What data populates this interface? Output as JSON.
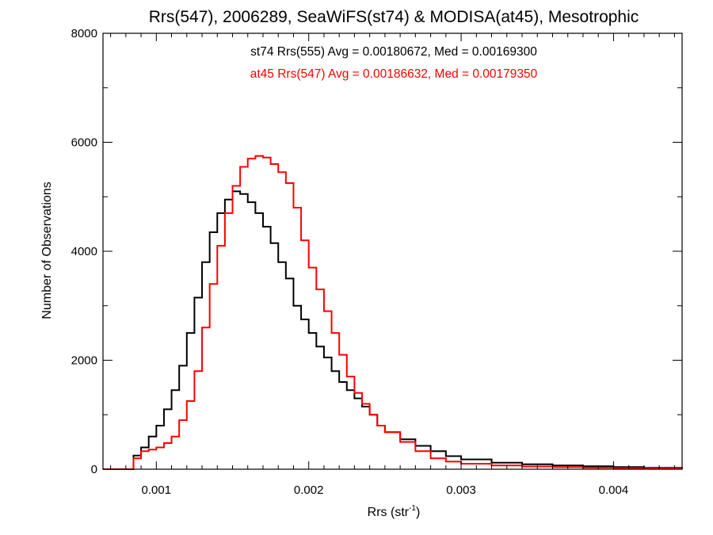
{
  "chart_data": {
    "type": "line",
    "title": "Rrs(547), 2006289, SeaWiFS(st74) & MODISA(at45), Mesotrophic",
    "xlabel_main": "Rrs (str",
    "xlabel_sup": "-1",
    "xlabel_close": ")",
    "ylabel": "Number of Observations",
    "xlim": [
      0.00065,
      0.00445
    ],
    "ylim": [
      0,
      8000
    ],
    "xticks": [
      0.001,
      0.002,
      0.003,
      0.004
    ],
    "xtick_labels": [
      "0.001",
      "0.002",
      "0.003",
      "0.004"
    ],
    "yticks": [
      0,
      2000,
      4000,
      6000,
      8000
    ],
    "ytick_labels": [
      "0",
      "2000",
      "4000",
      "6000",
      "8000"
    ],
    "grid": false,
    "legend_placement": "top-center",
    "series": [
      {
        "name": "st74 Rrs(555) Avg = 0.00180672, Med = 0.00169300",
        "color": "#000000",
        "x": [
          0.00065,
          0.00075,
          0.0008,
          0.00085,
          0.0009,
          0.00095,
          0.001,
          0.00105,
          0.0011,
          0.00115,
          0.0012,
          0.00125,
          0.0013,
          0.00135,
          0.0014,
          0.00145,
          0.0015,
          0.00155,
          0.0016,
          0.00165,
          0.0017,
          0.00175,
          0.0018,
          0.00185,
          0.0019,
          0.00195,
          0.002,
          0.00205,
          0.0021,
          0.00215,
          0.0022,
          0.00225,
          0.0023,
          0.00235,
          0.0024,
          0.00245,
          0.0025,
          0.0026,
          0.0027,
          0.0028,
          0.0029,
          0.003,
          0.0032,
          0.0034,
          0.0036,
          0.0038,
          0.004,
          0.0042,
          0.00445
        ],
        "y": [
          0,
          0,
          0,
          250,
          400,
          600,
          800,
          1100,
          1450,
          1900,
          2500,
          3150,
          3800,
          4350,
          4700,
          4950,
          5100,
          5050,
          4900,
          4700,
          4450,
          4150,
          3800,
          3500,
          3000,
          2750,
          2500,
          2250,
          2050,
          1800,
          1600,
          1450,
          1300,
          1150,
          1000,
          800,
          680,
          550,
          430,
          330,
          240,
          180,
          120,
          90,
          70,
          55,
          40,
          25,
          15
        ]
      },
      {
        "name": "at45 Rrs(547) Avg = 0.00186632, Med = 0.00179350",
        "color": "#ff0000",
        "x": [
          0.00065,
          0.00075,
          0.0008,
          0.00085,
          0.0009,
          0.00095,
          0.001,
          0.00105,
          0.0011,
          0.00115,
          0.0012,
          0.00125,
          0.0013,
          0.00135,
          0.0014,
          0.00145,
          0.0015,
          0.00155,
          0.0016,
          0.00165,
          0.0017,
          0.00175,
          0.0018,
          0.00185,
          0.0019,
          0.00195,
          0.002,
          0.00205,
          0.0021,
          0.00215,
          0.0022,
          0.00225,
          0.0023,
          0.00235,
          0.0024,
          0.00245,
          0.0025,
          0.0026,
          0.0027,
          0.0028,
          0.0029,
          0.003,
          0.0032,
          0.0034,
          0.0036,
          0.0038,
          0.004,
          0.0042,
          0.00445
        ],
        "y": [
          0,
          0,
          0,
          200,
          330,
          360,
          400,
          480,
          600,
          900,
          1250,
          1800,
          2600,
          3400,
          4100,
          4700,
          5200,
          5550,
          5700,
          5750,
          5720,
          5600,
          5450,
          5250,
          4800,
          4200,
          3700,
          3300,
          2900,
          2500,
          2100,
          1700,
          1400,
          1200,
          1000,
          800,
          680,
          500,
          330,
          200,
          140,
          100,
          70,
          50,
          40,
          30,
          20,
          15,
          10
        ]
      }
    ]
  }
}
